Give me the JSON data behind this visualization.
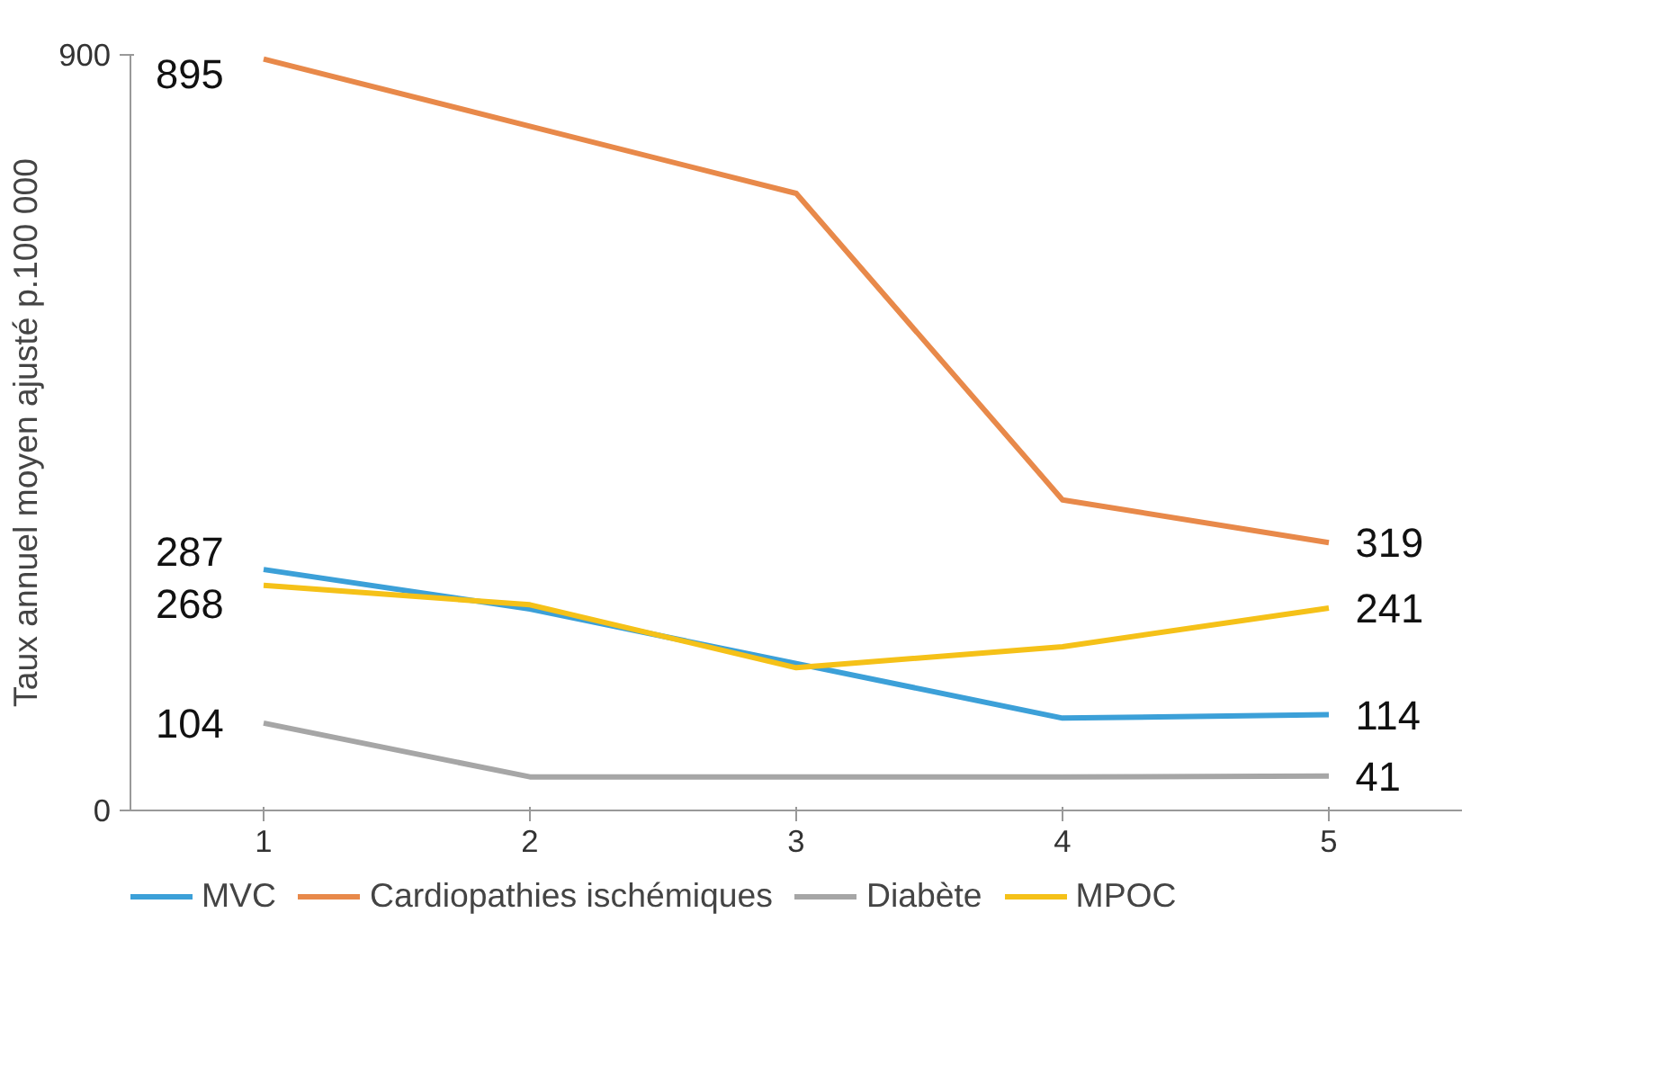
{
  "chart_data": {
    "type": "line",
    "ylabel": "Taux annuel moyen ajusté p.100 000",
    "categories": [
      "1",
      "2",
      "3",
      "4",
      "5"
    ],
    "ylim": [
      0,
      900
    ],
    "yticks": [
      0,
      900
    ],
    "grid": false,
    "legend": "bottom",
    "line_style": "solid",
    "marker": "none",
    "series": [
      {
        "name": "MVC",
        "color": "#3ca0d8",
        "values": [
          287,
          240,
          175,
          110,
          114
        ],
        "value_labels": [
          "287",
          null,
          null,
          null,
          "114"
        ]
      },
      {
        "name": "Cardiopathies ischémiques",
        "color": "#e8894a",
        "values": [
          895,
          815,
          735,
          370,
          319
        ],
        "value_labels": [
          "895",
          null,
          null,
          null,
          "319"
        ]
      },
      {
        "name": "Diabète",
        "color": "#a6a6a6",
        "values": [
          104,
          40,
          40,
          40,
          41
        ],
        "value_labels": [
          "104",
          null,
          null,
          null,
          "41"
        ]
      },
      {
        "name": "MPOC",
        "color": "#f5c118",
        "values": [
          268,
          245,
          170,
          195,
          241
        ],
        "value_labels": [
          "268",
          null,
          null,
          null,
          "241"
        ]
      }
    ]
  }
}
